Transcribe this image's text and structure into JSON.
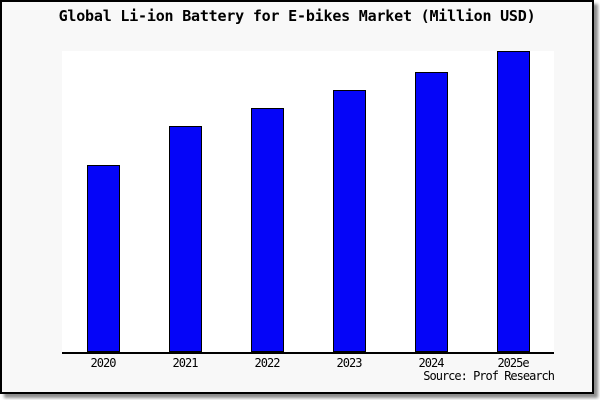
{
  "title": "Global Li-ion Battery for E-bikes Market (Million USD)",
  "source": "Source: Prof Research",
  "colors": {
    "bar_fill": "#0505F8",
    "bar_border": "#000000",
    "panel_bg": "#f8f8f8",
    "plot_bg": "#ffffff",
    "axis": "#000000",
    "text": "#000000"
  },
  "chart_data": {
    "type": "bar",
    "categories": [
      "2020",
      "2021",
      "2022",
      "2023",
      "2024",
      "2025e"
    ],
    "values": [
      62,
      75,
      81,
      87,
      93,
      100
    ],
    "value_note": "relative bar heights as % of tallest bar; chart shows no y-axis scale or value labels",
    "title": "Global Li-ion Battery for E-bikes Market (Million USD)",
    "xlabel": "",
    "ylabel": "",
    "ylim": [
      0,
      100
    ],
    "grid": false,
    "legend": false
  }
}
